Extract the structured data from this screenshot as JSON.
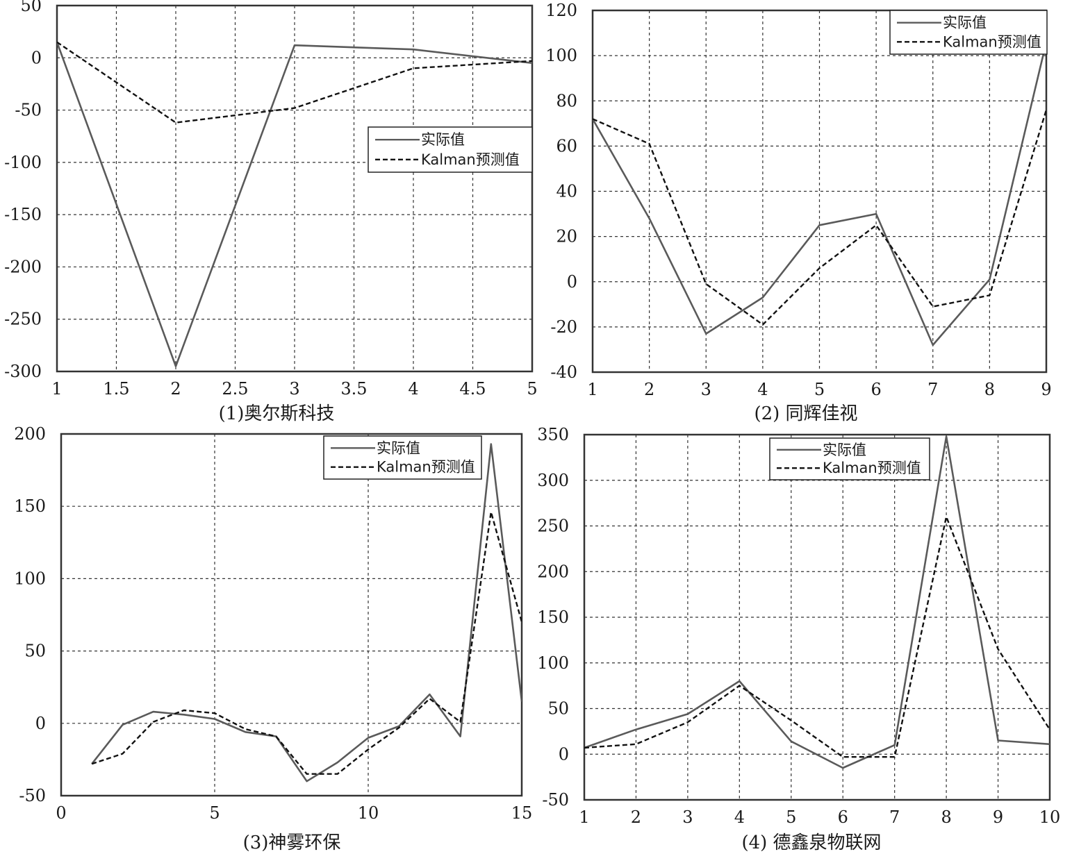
{
  "chart_data": [
    {
      "type": "line",
      "caption": "(1)奥尔斯科技",
      "xlim": [
        1,
        5
      ],
      "ylim": [
        -300,
        50
      ],
      "xticks": [
        "1",
        "1.5",
        "2",
        "2.5",
        "3",
        "3.5",
        "4",
        "4.5",
        "5"
      ],
      "yticks": [
        "50",
        "0",
        "-50",
        "-100",
        "-150",
        "-200",
        "-250",
        "-300"
      ],
      "grid": true,
      "legend_position": "right-middle",
      "series": [
        {
          "name": "实际值",
          "x": [
            1,
            2,
            3,
            4,
            5
          ],
          "y": [
            15,
            -295,
            12,
            8,
            -5
          ]
        },
        {
          "name": "Kalman预测值",
          "x": [
            1,
            2,
            3,
            4,
            5
          ],
          "y": [
            15,
            -62,
            -48,
            -10,
            -3
          ]
        }
      ]
    },
    {
      "type": "line",
      "caption": "(2) 同辉佳视",
      "xlim": [
        1,
        9
      ],
      "ylim": [
        -40,
        120
      ],
      "xticks": [
        "1",
        "2",
        "3",
        "4",
        "5",
        "6",
        "7",
        "8",
        "9"
      ],
      "yticks": [
        "120",
        "100",
        "80",
        "60",
        "40",
        "20",
        "0",
        "-20",
        "-40"
      ],
      "grid": true,
      "legend_position": "top-right",
      "series": [
        {
          "name": "实际值",
          "x": [
            1,
            2,
            3,
            4,
            5,
            6,
            7,
            8,
            9
          ],
          "y": [
            72,
            28,
            -23,
            -7,
            25,
            30,
            -28,
            1,
            106
          ]
        },
        {
          "name": "Kalman预测值",
          "x": [
            1,
            2,
            3,
            4,
            5,
            6,
            7,
            8,
            9
          ],
          "y": [
            72,
            61,
            -1,
            -19,
            6,
            25,
            -11,
            -6,
            76
          ]
        }
      ]
    },
    {
      "type": "line",
      "caption": "(3)神雾环保",
      "xlim": [
        0,
        15
      ],
      "ylim": [
        -50,
        200
      ],
      "xticks": [
        "0",
        "5",
        "10",
        "15"
      ],
      "yticks": [
        "200",
        "150",
        "100",
        "50",
        "0",
        "-50"
      ],
      "grid": true,
      "legend_position": "top-right",
      "series": [
        {
          "name": "实际值",
          "x": [
            1,
            2,
            3,
            4,
            5,
            6,
            7,
            8,
            9,
            10,
            11,
            12,
            13,
            14,
            15
          ],
          "y": [
            -28,
            -1,
            8,
            6,
            3,
            -6,
            -9,
            -40,
            -27,
            -10,
            -2,
            20,
            -9,
            193,
            15
          ]
        },
        {
          "name": "Kalman预测值",
          "x": [
            1,
            2,
            3,
            4,
            5,
            6,
            7,
            8,
            9,
            10,
            11,
            12,
            13,
            14,
            15
          ],
          "y": [
            -28,
            -21,
            1,
            9,
            7,
            -4,
            -9,
            -35,
            -35,
            -18,
            -3,
            17,
            1,
            146,
            70
          ]
        }
      ]
    },
    {
      "type": "line",
      "caption": "(4) 德鑫泉物联网",
      "xlim": [
        1,
        10
      ],
      "ylim": [
        -50,
        350
      ],
      "xticks": [
        "1",
        "2",
        "3",
        "4",
        "5",
        "6",
        "7",
        "8",
        "9",
        "10"
      ],
      "yticks": [
        "350",
        "300",
        "250",
        "200",
        "150",
        "100",
        "50",
        "0",
        "-50"
      ],
      "grid": true,
      "legend_position": "top-left",
      "series": [
        {
          "name": "实际值",
          "x": [
            1,
            2,
            3,
            4,
            5,
            6,
            7,
            8,
            9,
            10
          ],
          "y": [
            7,
            27,
            44,
            80,
            14,
            -15,
            10,
            348,
            15,
            11
          ]
        },
        {
          "name": "Kalman预测值",
          "x": [
            1,
            2,
            3,
            4,
            5,
            6,
            7,
            8,
            9,
            10
          ],
          "y": [
            7,
            11,
            35,
            75,
            37,
            -3,
            -3,
            260,
            115,
            27
          ]
        }
      ]
    }
  ],
  "style": {
    "actual_color": "#5a5a5a",
    "pred_color": "#111111",
    "grid_color": "#333333",
    "axis_color": "#333333"
  }
}
